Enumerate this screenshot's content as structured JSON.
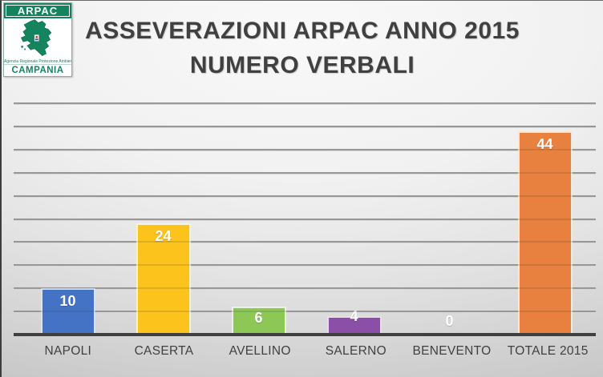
{
  "title": {
    "line1": "ASSEVERAZIONI ARPAC ANNO 2015",
    "line2": "NUMERO VERBALI"
  },
  "logo": {
    "name": "ARPAC",
    "subtitle": "Agenzia Regionale Protezione Ambientale",
    "region": "CAMPANIA",
    "green": "#13845E"
  },
  "chart_data": {
    "type": "bar",
    "title": "ASSEVERAZIONI ARPAC ANNO 2015 NUMERO VERBALI",
    "categories": [
      "NAPOLI",
      "CASERTA",
      "AVELLINO",
      "SALERNO",
      "BENEVENTO",
      "TOTALE 2015"
    ],
    "values": [
      10,
      24,
      6,
      4,
      0,
      44
    ],
    "bar_colors": [
      "#4472C4",
      "#FBC31C",
      "#8DC857",
      "#8C4FA8",
      "#C8C8C8",
      "#E8813F"
    ],
    "value_label_color": "#FFFFFF",
    "xlabel": "",
    "ylabel": "",
    "ylim": [
      0,
      50
    ],
    "gridline_step": 5,
    "grid": true,
    "legend": false,
    "axis_color": "#3F3F3F",
    "gridline_color": "#A9A9A9",
    "category_label_color": "#404040"
  }
}
